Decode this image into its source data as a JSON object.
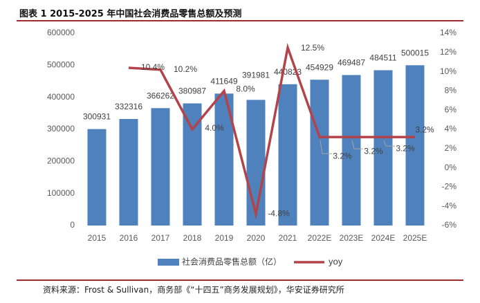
{
  "colors": {
    "bar": "#4F81BD",
    "line": "#B3434A",
    "rule": "#9E2B2E",
    "tick_text": "#595959",
    "label_text": "#404040",
    "leader": "#A6A6A6"
  },
  "source": "资料来源：Frost & Sullivan，商务部《“十四五”商务发展规划》，华安证券研究所",
  "chart_data": {
    "type": "bar",
    "title": "图表 1 2015-2025 年中国社会消费品零售总额及预测",
    "categories": [
      "2015",
      "2016",
      "2017",
      "2018",
      "2019",
      "2020",
      "2021",
      "2022E",
      "2023E",
      "2024E",
      "2025E"
    ],
    "series": [
      {
        "name": "社会消费品零售总额（亿）",
        "type": "bar",
        "values": [
          300931,
          332316,
          366262,
          380987,
          411649,
          391981,
          440823,
          454929,
          469487,
          484511,
          500015
        ]
      },
      {
        "name": "yoy",
        "type": "line",
        "values": [
          null,
          10.4,
          10.2,
          4.0,
          8.0,
          -4.8,
          12.5,
          3.2,
          3.2,
          3.2,
          3.2
        ],
        "labels": [
          null,
          "10.4%",
          "10.2%",
          "4.0%",
          "8.0%",
          "-4.8%",
          "12.5%",
          "3.2%",
          "3.2%",
          "3.2%",
          "3.2%"
        ]
      }
    ],
    "y_left": {
      "ylim": [
        0,
        600000
      ],
      "ticks": [
        0,
        100000,
        200000,
        300000,
        400000,
        500000,
        600000
      ]
    },
    "y_right": {
      "ylim": [
        -6,
        14
      ],
      "ticks": [
        "-6%",
        "-4%",
        "-2%",
        "0%",
        "2%",
        "4%",
        "6%",
        "8%",
        "10%",
        "12%",
        "14%"
      ]
    },
    "grid": false,
    "legend": {
      "position": "bottom"
    }
  }
}
